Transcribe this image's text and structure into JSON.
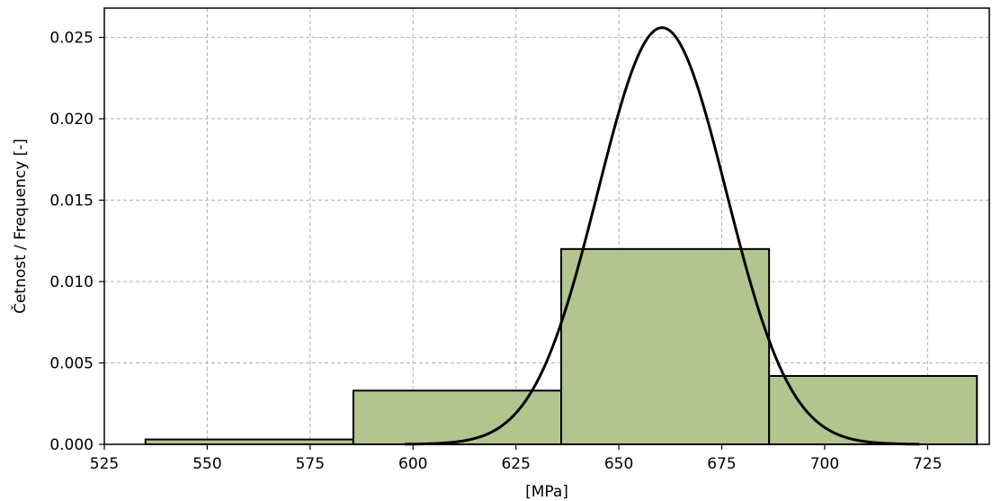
{
  "chart_data": {
    "type": "bar",
    "title": "",
    "xlabel": "[MPa]",
    "ylabel": "Četnost / Frequency [-]",
    "xlim": [
      525,
      740
    ],
    "ylim": [
      0,
      0.0268
    ],
    "xticks": [
      525,
      550,
      575,
      600,
      625,
      650,
      675,
      700,
      725
    ],
    "yticks": [
      0.0,
      0.005,
      0.01,
      0.015,
      0.02,
      0.025
    ],
    "ytick_labels": [
      "0.000",
      "0.005",
      "0.010",
      "0.015",
      "0.020",
      "0.025"
    ],
    "grid": true,
    "histogram": {
      "bins": [
        [
          535,
          585.5
        ],
        [
          585.5,
          636
        ],
        [
          636,
          686.5
        ],
        [
          686.5,
          737
        ]
      ],
      "values": [
        0.0003,
        0.0033,
        0.012,
        0.0042
      ],
      "color": "#b3c58e",
      "edge_color": "#000000"
    },
    "density_curve": {
      "type": "normal",
      "mean": 660.5,
      "std": 15.6,
      "x_range": [
        598,
        723
      ],
      "peak": 0.0256,
      "color": "#000000"
    }
  }
}
